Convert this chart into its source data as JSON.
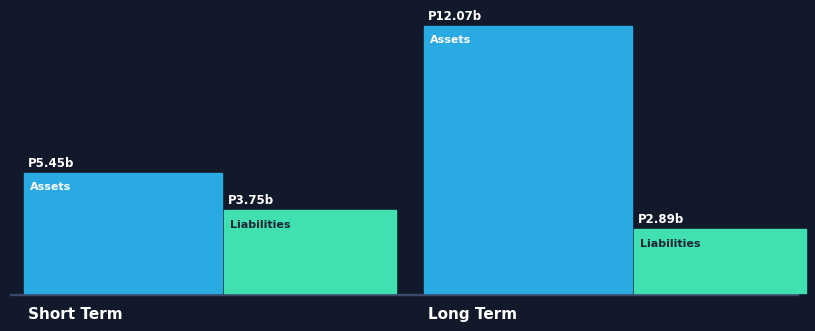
{
  "background_color": "#12192b",
  "bar_color_assets": "#29aae2",
  "bar_color_liabilities": "#40e0b0",
  "text_color_white": "#ffffff",
  "text_color_dark": "#1a2535",
  "short_term": {
    "label": "Short Term",
    "assets_value": 5.45,
    "assets_label": "P5.45b",
    "assets_inner": "Assets",
    "liabilities_value": 3.75,
    "liabilities_label": "P3.75b",
    "liabilities_inner": "Liabilities"
  },
  "long_term": {
    "label": "Long Term",
    "assets_value": 12.07,
    "assets_label": "P12.07b",
    "assets_inner": "Assets",
    "liabilities_value": 2.89,
    "liabilities_label": "P2.89b",
    "liabilities_inner": "Liabilities"
  },
  "max_value": 12.07,
  "label_fontsize": 8.5,
  "inner_label_fontsize": 8,
  "group_label_fontsize": 11
}
